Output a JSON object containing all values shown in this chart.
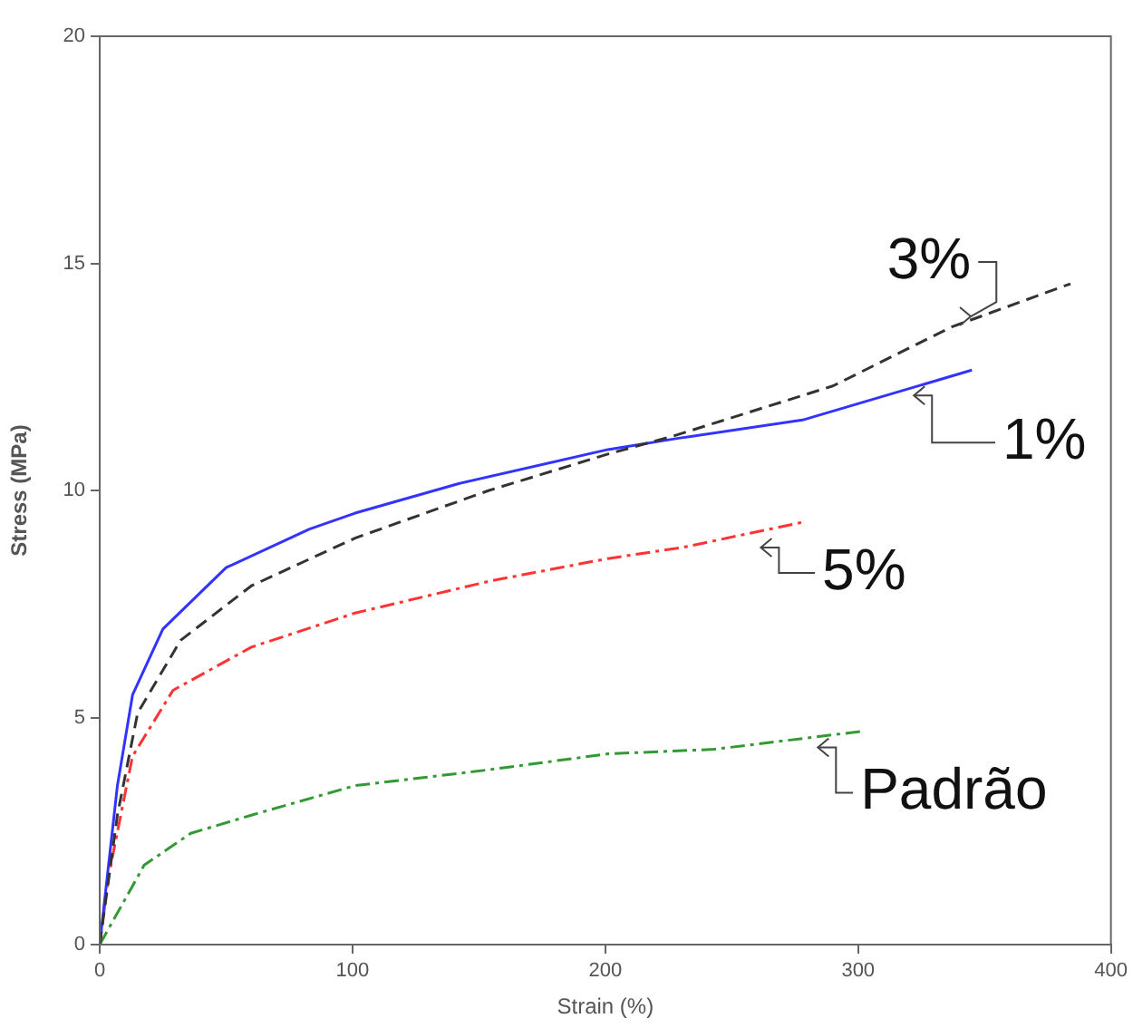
{
  "chart_data": {
    "type": "line",
    "xlabel": "Strain (%)",
    "ylabel": "Stress (MPa)",
    "xlim": [
      0,
      400
    ],
    "xticks": [
      0,
      100,
      200,
      300,
      400
    ],
    "ylim": [
      0,
      20
    ],
    "yticks": [
      0,
      5,
      10,
      15,
      20
    ],
    "grid": false,
    "legend": false,
    "marker": "none",
    "series": [
      {
        "name": "3%",
        "color": "#333333",
        "line_style": "dashed",
        "x": [
          0,
          7,
          15,
          32,
          60,
          101,
          154,
          201,
          227,
          290,
          337,
          384
        ],
        "values": [
          0,
          2.85,
          5.1,
          6.7,
          7.9,
          8.95,
          10.0,
          10.8,
          11.2,
          12.3,
          13.6,
          14.55
        ]
      },
      {
        "name": "1%",
        "color": "#3333ff",
        "line_style": "solid",
        "x": [
          0,
          1,
          7,
          13,
          25,
          50,
          83,
          101,
          142,
          201,
          229,
          278,
          345
        ],
        "values": [
          0,
          0.5,
          3.5,
          5.5,
          6.95,
          8.3,
          9.15,
          9.5,
          10.15,
          10.9,
          11.15,
          11.55,
          12.65
        ]
      },
      {
        "name": "5%",
        "color": "#ff3333",
        "line_style": "dashdot",
        "x": [
          0,
          3.5,
          13,
          29,
          60,
          101,
          154,
          201,
          231,
          278
        ],
        "values": [
          0,
          1.5,
          4.15,
          5.6,
          6.55,
          7.3,
          8.0,
          8.5,
          8.75,
          9.3
        ]
      },
      {
        "name": "Padrão",
        "color": "#339933",
        "line_style": "dashdot",
        "x": [
          0,
          17.6,
          36,
          60,
          101,
          154,
          201,
          243,
          302
        ],
        "values": [
          0,
          1.75,
          2.45,
          2.85,
          3.5,
          3.85,
          4.2,
          4.3,
          4.7
        ]
      }
    ]
  }
}
